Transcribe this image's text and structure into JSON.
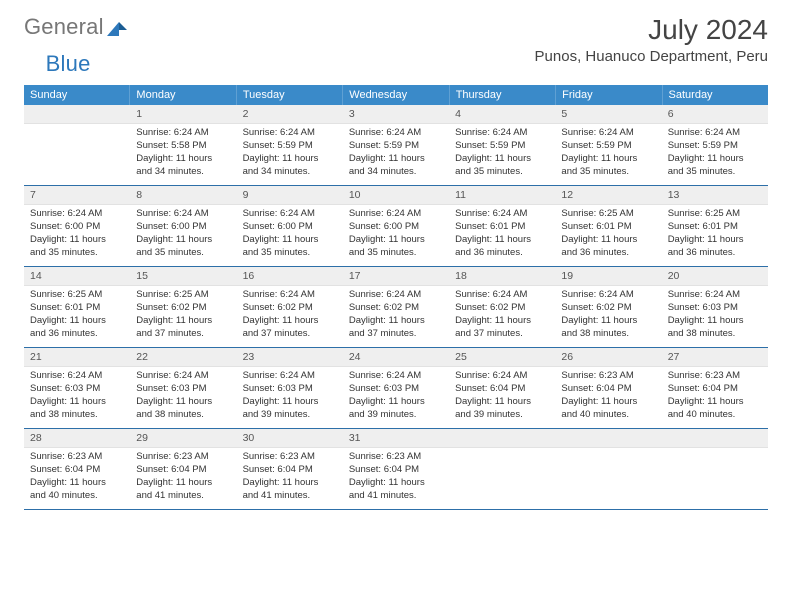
{
  "logo": {
    "text1": "General",
    "text2": "Blue"
  },
  "title": "July 2024",
  "location": "Punos, Huanuco Department, Peru",
  "colors": {
    "header_bg": "#3a8ac9",
    "header_border": "#5fa0d3",
    "row_border": "#2d6fa8",
    "daynum_bg": "#efefef",
    "text": "#333333",
    "logo_gray": "#777777",
    "logo_blue": "#2d78bb"
  },
  "weekdays": [
    "Sunday",
    "Monday",
    "Tuesday",
    "Wednesday",
    "Thursday",
    "Friday",
    "Saturday"
  ],
  "weeks": [
    [
      {
        "blank": true
      },
      {
        "n": "1",
        "sr": "6:24 AM",
        "ss": "5:58 PM",
        "dl": "11 hours and 34 minutes."
      },
      {
        "n": "2",
        "sr": "6:24 AM",
        "ss": "5:59 PM",
        "dl": "11 hours and 34 minutes."
      },
      {
        "n": "3",
        "sr": "6:24 AM",
        "ss": "5:59 PM",
        "dl": "11 hours and 34 minutes."
      },
      {
        "n": "4",
        "sr": "6:24 AM",
        "ss": "5:59 PM",
        "dl": "11 hours and 35 minutes."
      },
      {
        "n": "5",
        "sr": "6:24 AM",
        "ss": "5:59 PM",
        "dl": "11 hours and 35 minutes."
      },
      {
        "n": "6",
        "sr": "6:24 AM",
        "ss": "5:59 PM",
        "dl": "11 hours and 35 minutes."
      }
    ],
    [
      {
        "n": "7",
        "sr": "6:24 AM",
        "ss": "6:00 PM",
        "dl": "11 hours and 35 minutes."
      },
      {
        "n": "8",
        "sr": "6:24 AM",
        "ss": "6:00 PM",
        "dl": "11 hours and 35 minutes."
      },
      {
        "n": "9",
        "sr": "6:24 AM",
        "ss": "6:00 PM",
        "dl": "11 hours and 35 minutes."
      },
      {
        "n": "10",
        "sr": "6:24 AM",
        "ss": "6:00 PM",
        "dl": "11 hours and 35 minutes."
      },
      {
        "n": "11",
        "sr": "6:24 AM",
        "ss": "6:01 PM",
        "dl": "11 hours and 36 minutes."
      },
      {
        "n": "12",
        "sr": "6:25 AM",
        "ss": "6:01 PM",
        "dl": "11 hours and 36 minutes."
      },
      {
        "n": "13",
        "sr": "6:25 AM",
        "ss": "6:01 PM",
        "dl": "11 hours and 36 minutes."
      }
    ],
    [
      {
        "n": "14",
        "sr": "6:25 AM",
        "ss": "6:01 PM",
        "dl": "11 hours and 36 minutes."
      },
      {
        "n": "15",
        "sr": "6:25 AM",
        "ss": "6:02 PM",
        "dl": "11 hours and 37 minutes."
      },
      {
        "n": "16",
        "sr": "6:24 AM",
        "ss": "6:02 PM",
        "dl": "11 hours and 37 minutes."
      },
      {
        "n": "17",
        "sr": "6:24 AM",
        "ss": "6:02 PM",
        "dl": "11 hours and 37 minutes."
      },
      {
        "n": "18",
        "sr": "6:24 AM",
        "ss": "6:02 PM",
        "dl": "11 hours and 37 minutes."
      },
      {
        "n": "19",
        "sr": "6:24 AM",
        "ss": "6:02 PM",
        "dl": "11 hours and 38 minutes."
      },
      {
        "n": "20",
        "sr": "6:24 AM",
        "ss": "6:03 PM",
        "dl": "11 hours and 38 minutes."
      }
    ],
    [
      {
        "n": "21",
        "sr": "6:24 AM",
        "ss": "6:03 PM",
        "dl": "11 hours and 38 minutes."
      },
      {
        "n": "22",
        "sr": "6:24 AM",
        "ss": "6:03 PM",
        "dl": "11 hours and 38 minutes."
      },
      {
        "n": "23",
        "sr": "6:24 AM",
        "ss": "6:03 PM",
        "dl": "11 hours and 39 minutes."
      },
      {
        "n": "24",
        "sr": "6:24 AM",
        "ss": "6:03 PM",
        "dl": "11 hours and 39 minutes."
      },
      {
        "n": "25",
        "sr": "6:24 AM",
        "ss": "6:04 PM",
        "dl": "11 hours and 39 minutes."
      },
      {
        "n": "26",
        "sr": "6:23 AM",
        "ss": "6:04 PM",
        "dl": "11 hours and 40 minutes."
      },
      {
        "n": "27",
        "sr": "6:23 AM",
        "ss": "6:04 PM",
        "dl": "11 hours and 40 minutes."
      }
    ],
    [
      {
        "n": "28",
        "sr": "6:23 AM",
        "ss": "6:04 PM",
        "dl": "11 hours and 40 minutes."
      },
      {
        "n": "29",
        "sr": "6:23 AM",
        "ss": "6:04 PM",
        "dl": "11 hours and 41 minutes."
      },
      {
        "n": "30",
        "sr": "6:23 AM",
        "ss": "6:04 PM",
        "dl": "11 hours and 41 minutes."
      },
      {
        "n": "31",
        "sr": "6:23 AM",
        "ss": "6:04 PM",
        "dl": "11 hours and 41 minutes."
      },
      {
        "blank": true
      },
      {
        "blank": true
      },
      {
        "blank": true
      }
    ]
  ],
  "labels": {
    "sunrise": "Sunrise:",
    "sunset": "Sunset:",
    "daylight": "Daylight:"
  }
}
